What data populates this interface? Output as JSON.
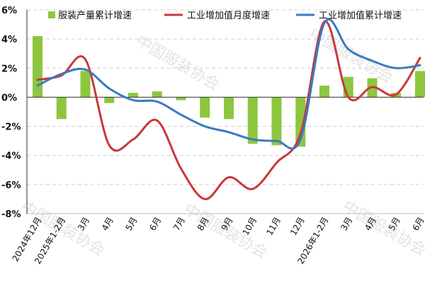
{
  "chart_data": {
    "type": "bar+line",
    "categories": [
      "2024年12月",
      "2025年1-2月",
      "3月",
      "4月",
      "5月",
      "6月",
      "7月",
      "8月",
      "9月",
      "10月",
      "11月",
      "12月",
      "2026年1-2月",
      "3月",
      "4月",
      "5月",
      "6月"
    ],
    "series": [
      {
        "name": "服装产量累计增速",
        "type": "bar",
        "color": "#8dc63f",
        "values": [
          4.2,
          -1.5,
          1.8,
          -0.4,
          0.3,
          0.4,
          -0.2,
          -1.4,
          -1.5,
          -3.2,
          -3.3,
          -3.4,
          0.8,
          1.4,
          1.3,
          0.3,
          1.8
        ]
      },
      {
        "name": "工业增加值月度增速",
        "type": "line",
        "color": "#c8383b",
        "values": [
          1.2,
          1.5,
          2.6,
          -3.3,
          -2.9,
          -1.6,
          -4.9,
          -7.0,
          -5.5,
          -6.3,
          -4.5,
          -2.5,
          5.2,
          0.0,
          0.7,
          0.2,
          2.7
        ]
      },
      {
        "name": "工业增加值累计增速",
        "type": "line",
        "color": "#3a7bbf",
        "values": [
          0.8,
          1.6,
          1.9,
          0.6,
          -0.2,
          -0.3,
          -1.2,
          -2.0,
          -2.4,
          -2.9,
          -3.0,
          -2.9,
          5.1,
          3.3,
          2.5,
          2.0,
          2.2
        ]
      }
    ],
    "yticks": [
      "-8%",
      "-6%",
      "-4%",
      "-2%",
      "0%",
      "2%",
      "4%",
      "6%"
    ],
    "ylim": [
      -8,
      6
    ],
    "title": "",
    "xlabel": "",
    "ylabel": "",
    "grid": true,
    "legend": "top",
    "watermark": [
      "中国服装协会",
      "中国服装协会",
      "中国服装协会",
      "中国服装协会",
      "中国服装协会"
    ]
  }
}
